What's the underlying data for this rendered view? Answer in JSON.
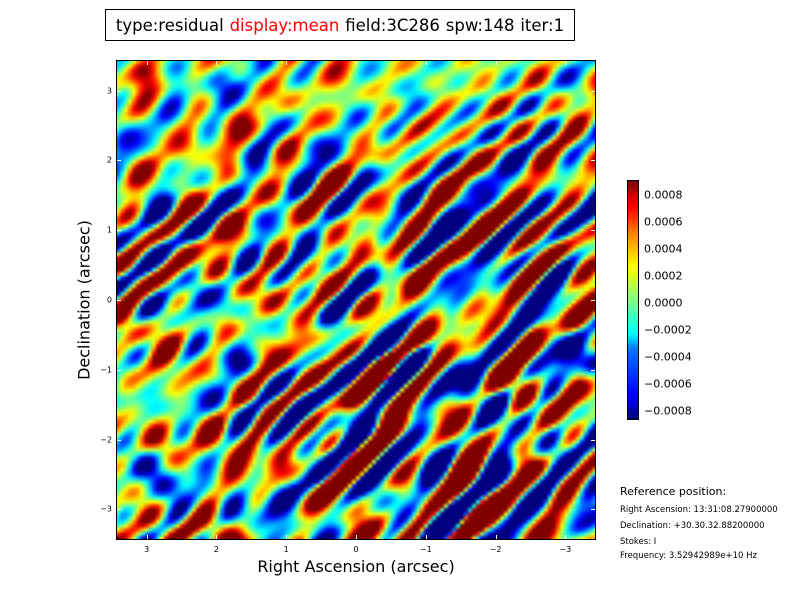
{
  "title": {
    "type": "type:residual",
    "display": "display:mean",
    "field": "field:3C286",
    "spw": "spw:148",
    "iter": "iter:1",
    "display_color": "#ff0000"
  },
  "chart_data": {
    "type": "heatmap",
    "colormap": "jet",
    "xlabel": "Right Ascension (arcsec)",
    "ylabel": "Declination (arcsec)",
    "xlim": [
      3.44,
      -3.44
    ],
    "ylim": [
      -3.44,
      3.44
    ],
    "xticks": [
      3,
      2,
      1,
      0,
      -1,
      -2,
      -3
    ],
    "xtick_labels": [
      "3",
      "2",
      "1",
      "0",
      "−1",
      "−2",
      "−3"
    ],
    "yticks": [
      3,
      2,
      1,
      0,
      -1,
      -2,
      -3
    ],
    "ytick_labels": [
      "3",
      "2",
      "1",
      "0",
      "−1",
      "−2",
      "−3"
    ],
    "colorbar": {
      "range": [
        -0.00087,
        0.000915
      ],
      "ticks": [
        0.0008,
        0.0006,
        0.0004,
        0.0002,
        0.0,
        -0.0002,
        -0.0004,
        -0.0006,
        -0.0008
      ],
      "tick_labels": [
        "0.0008",
        "0.0006",
        "0.0004",
        "0.0002",
        "0.0000",
        "−0.0002",
        "−0.0004",
        "−0.0006",
        "−0.0008"
      ]
    }
  },
  "reference": {
    "heading": "Reference position:",
    "ra": "Right Ascension: 13:31:08.27900000",
    "dec": "Declination: +30.30.32.88200000",
    "stokes": "Stokes: I",
    "frequency": "Frequency: 3.52942989e+10 Hz"
  }
}
